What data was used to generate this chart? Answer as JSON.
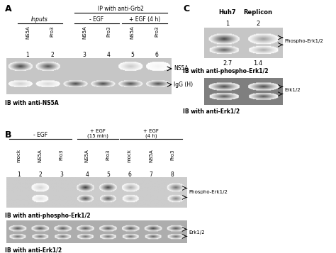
{
  "bg_color": "#ffffff",
  "panel_A": {
    "label": "A",
    "header_ip": "IP with anti-Grb2",
    "group_inputs": "Inputs",
    "group_neg_egf": "- EGF",
    "group_pos_egf": "+ EGF (4 h)",
    "lanes": [
      "NS5A",
      "Pro3",
      "NS5A",
      "Pro3",
      "NS5A",
      "Pro3"
    ],
    "lane_nums": [
      "1",
      "2",
      "3",
      "4",
      "5",
      "6"
    ],
    "band1_label": "NS5A",
    "band2_label": "IgG (H)",
    "ib_label": "IB with anti-NS5A"
  },
  "panel_B": {
    "label": "B",
    "group_neg_egf": "- EGF",
    "group_pos_egf1": "+ EGF\n(15 min)",
    "group_pos_egf2": "+ EGF\n(4 h)",
    "lanes": [
      "mock",
      "NS5A",
      "Pro3",
      "NS5A",
      "Pro3",
      "mock",
      "NS5A",
      "Pro3"
    ],
    "lane_nums": [
      "1",
      "2",
      "3",
      "4",
      "5",
      "6",
      "7",
      "8"
    ],
    "band1_label": "Phospho-Erk1/2",
    "band2_label": "Erk1/2",
    "ib1_label": "IB with anti-phospho-Erk1/2",
    "ib2_label": "IB with anti-Erk1/2"
  },
  "panel_C": {
    "label": "C",
    "col1": "Huh7",
    "col2": "Replicon",
    "lane_nums": [
      "1",
      "2"
    ],
    "values": [
      "2.7",
      "1.4"
    ],
    "band1_label": "Phospho-Erk1/2",
    "band2_label": "Erk1/2",
    "ib1_label": "IB with anti-phospho-Erk1/2",
    "ib2_label": "IB with anti-Erk1/2"
  }
}
